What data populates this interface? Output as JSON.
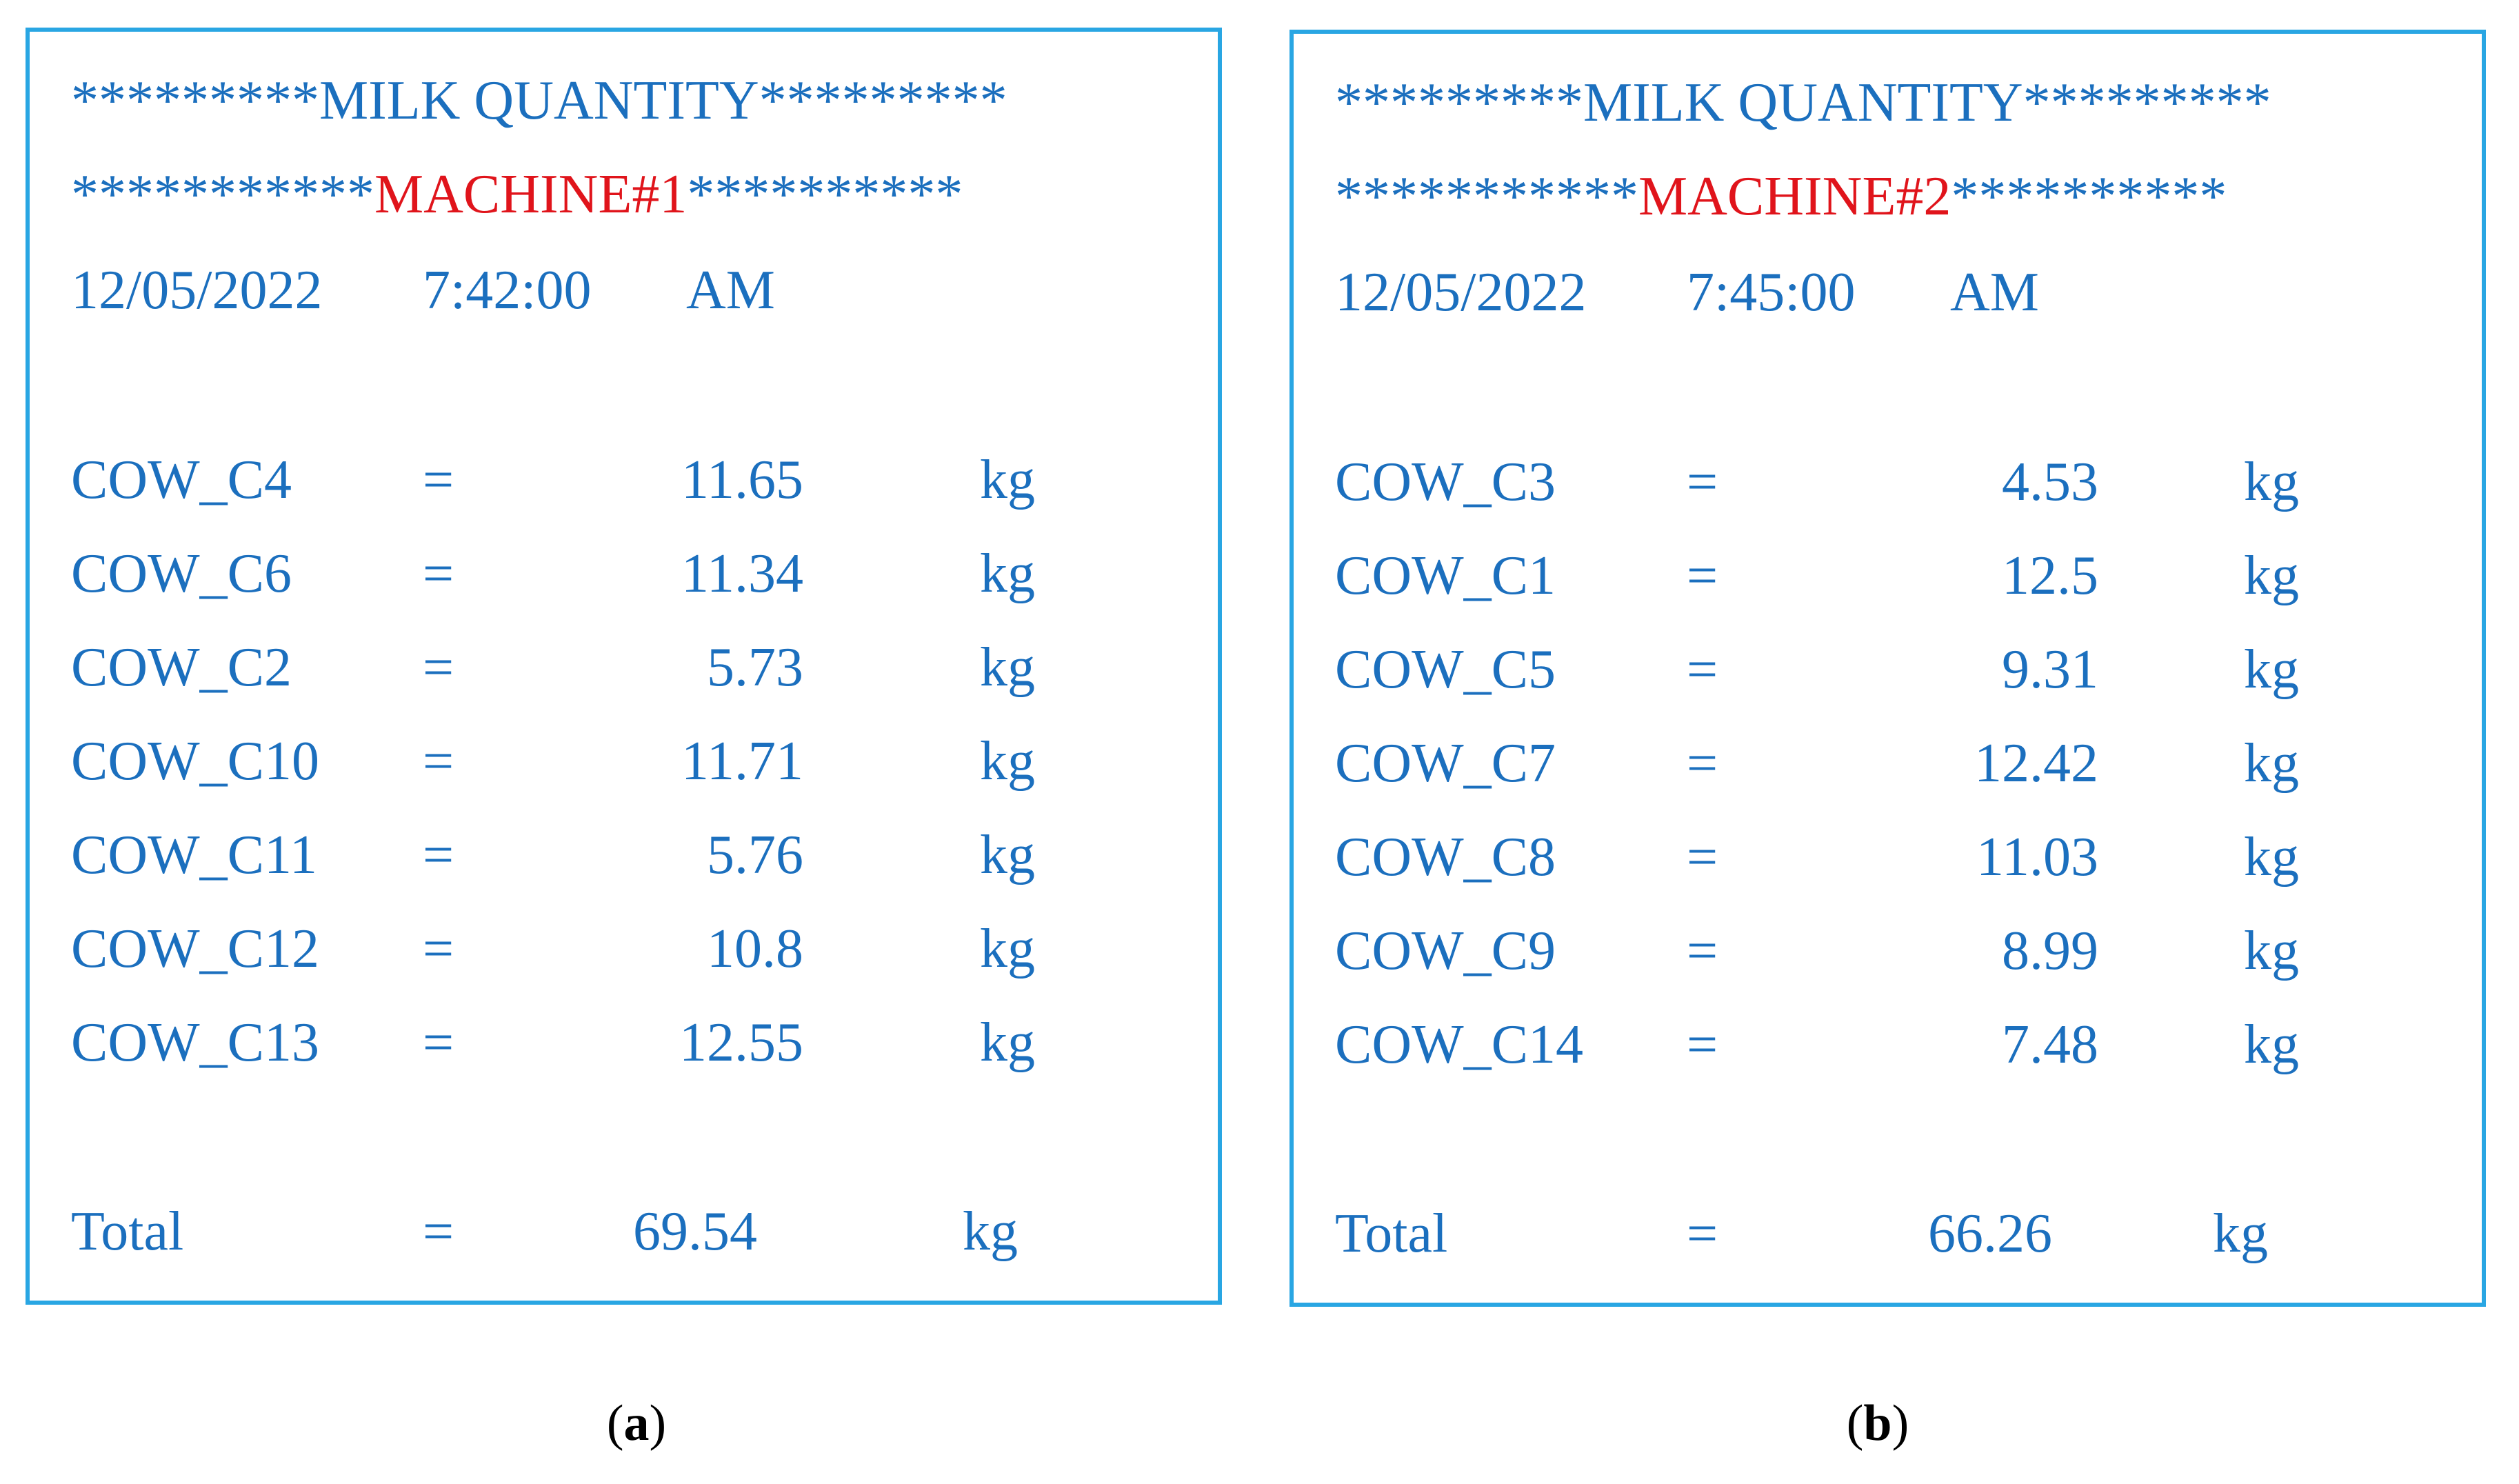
{
  "colors": {
    "text_blue": "#1B6FBE",
    "highlight_red": "#E0141B",
    "border_blue": "#29A6E3"
  },
  "panels": [
    {
      "header_stars_left": "*********",
      "header_title": "MILK QUANTITY",
      "header_stars_right": "*********",
      "machine_stars_left": "***********",
      "machine": "MACHINE#1",
      "machine_stars_right": "**********",
      "date": "12/05/2022",
      "time": "7:42:00",
      "ampm": "AM",
      "rows": [
        {
          "cow": "COW_C4",
          "eq": "=",
          "value": "11.65",
          "unit": "kg"
        },
        {
          "cow": "COW_C6",
          "eq": "=",
          "value": "11.34",
          "unit": "kg"
        },
        {
          "cow": "COW_C2",
          "eq": "=",
          "value": "5.73",
          "unit": "kg"
        },
        {
          "cow": "COW_C10",
          "eq": "=",
          "value": "11.71",
          "unit": "kg"
        },
        {
          "cow": "COW_C11",
          "eq": "=",
          "value": "5.76",
          "unit": "kg"
        },
        {
          "cow": "COW_C12",
          "eq": "=",
          "value": "10.8",
          "unit": "kg"
        },
        {
          "cow": "COW_C13",
          "eq": "=",
          "value": "12.55",
          "unit": "kg"
        }
      ],
      "total": {
        "label": "Total",
        "eq": "=",
        "value": "69.54",
        "unit": "kg"
      },
      "caption": "a"
    },
    {
      "header_stars_left": "*********",
      "header_title": "MILK QUANTITY",
      "header_stars_right": "*********",
      "machine_stars_left": "***********",
      "machine": "MACHINE#2",
      "machine_stars_right": "**********",
      "date": "12/05/2022",
      "time": "7:45:00",
      "ampm": "AM",
      "rows": [
        {
          "cow": "COW_C3",
          "eq": "=",
          "value": "4.53",
          "unit": "kg"
        },
        {
          "cow": "COW_C1",
          "eq": "=",
          "value": "12.5",
          "unit": "kg"
        },
        {
          "cow": "COW_C5",
          "eq": "=",
          "value": "9.31",
          "unit": "kg"
        },
        {
          "cow": "COW_C7",
          "eq": "=",
          "value": "12.42",
          "unit": "kg"
        },
        {
          "cow": "COW_C8",
          "eq": "=",
          "value": "11.03",
          "unit": "kg"
        },
        {
          "cow": "COW_C9",
          "eq": "=",
          "value": "8.99",
          "unit": "kg"
        },
        {
          "cow": "COW_C14",
          "eq": "=",
          "value": "7.48",
          "unit": "kg"
        }
      ],
      "total": {
        "label": "Total",
        "eq": "=",
        "value": "66.26",
        "unit": "kg"
      },
      "caption": "b"
    }
  ]
}
